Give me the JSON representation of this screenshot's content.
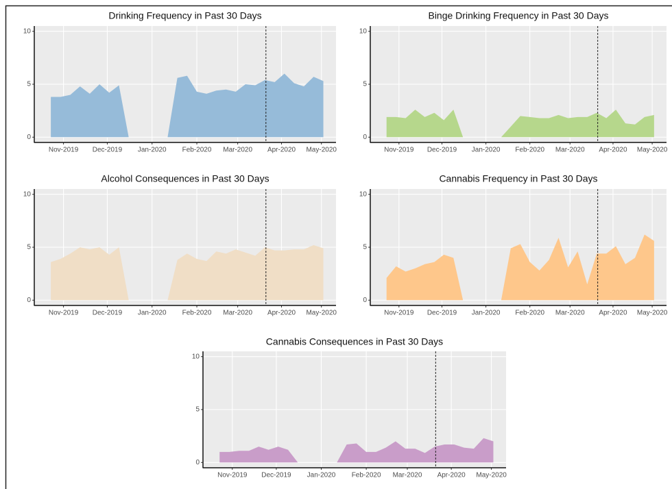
{
  "chart_data": [
    {
      "type": "area",
      "title": "Drinking Frequency in Past 30 Days",
      "color": "#96bbd9",
      "x": [
        0,
        1,
        2,
        3,
        4,
        5,
        6,
        7,
        8,
        10,
        12,
        13,
        14,
        15,
        16,
        17,
        18,
        19,
        20,
        21,
        22,
        23,
        24,
        25,
        26,
        27,
        28
      ],
      "values": [
        3.8,
        3.8,
        4.0,
        4.8,
        4.1,
        5.0,
        4.2,
        4.9,
        0,
        null,
        0,
        5.6,
        5.8,
        4.3,
        4.1,
        4.4,
        4.5,
        4.3,
        5.0,
        4.9,
        5.4,
        5.2,
        6.0,
        5.1,
        4.8,
        5.7,
        5.3
      ],
      "xlim": [
        -1.7,
        29.3
      ],
      "xticks": [
        {
          "value": 1.3,
          "label": "Nov-2019"
        },
        {
          "value": 5.8,
          "label": "Dec-2019"
        },
        {
          "value": 10.4,
          "label": "Jan-2020"
        },
        {
          "value": 15.0,
          "label": "Feb-2020"
        },
        {
          "value": 19.2,
          "label": "Mar-2020"
        },
        {
          "value": 23.7,
          "label": "Apr-2020"
        },
        {
          "value": 27.8,
          "label": "May-2020"
        }
      ],
      "ylim": [
        -0.5,
        10.5
      ],
      "yticks": [
        0,
        5,
        10
      ],
      "vline": 22.1,
      "grid": true
    },
    {
      "type": "area",
      "title": "Binge Drinking Frequency in Past 30 Days",
      "color": "#b6d78c",
      "x": [
        0,
        1,
        2,
        3,
        4,
        5,
        6,
        7,
        8,
        10,
        12,
        13,
        14,
        15,
        16,
        17,
        18,
        19,
        20,
        21,
        22,
        23,
        24,
        25,
        26,
        27,
        28
      ],
      "values": [
        1.9,
        1.9,
        1.8,
        2.6,
        1.9,
        2.3,
        1.6,
        2.6,
        0,
        null,
        0,
        1.0,
        2.0,
        1.9,
        1.8,
        1.8,
        2.1,
        1.8,
        1.9,
        1.9,
        2.3,
        1.8,
        2.6,
        1.3,
        1.2,
        1.9,
        2.1
      ],
      "xlim": [
        -1.7,
        29.3
      ],
      "xticks": [
        {
          "value": 1.3,
          "label": "Nov-2019"
        },
        {
          "value": 5.8,
          "label": "Dec-2019"
        },
        {
          "value": 10.4,
          "label": "Jan-2020"
        },
        {
          "value": 15.0,
          "label": "Feb-2020"
        },
        {
          "value": 19.2,
          "label": "Mar-2020"
        },
        {
          "value": 23.7,
          "label": "Apr-2020"
        },
        {
          "value": 27.8,
          "label": "May-2020"
        }
      ],
      "ylim": [
        -0.5,
        10.5
      ],
      "yticks": [
        0,
        5,
        10
      ],
      "vline": 22.1,
      "grid": true
    },
    {
      "type": "area",
      "title": "Alcohol Consequences in Past 30 Days",
      "color": "#f0dec6",
      "x": [
        0,
        1,
        2,
        3,
        4,
        5,
        6,
        7,
        8,
        10,
        12,
        13,
        14,
        15,
        16,
        17,
        18,
        19,
        20,
        21,
        22,
        23,
        24,
        25,
        26,
        27,
        28
      ],
      "values": [
        3.6,
        3.9,
        4.4,
        5.0,
        4.8,
        5.0,
        4.3,
        5.0,
        0,
        null,
        0,
        3.8,
        4.4,
        3.9,
        3.7,
        4.6,
        4.4,
        4.8,
        4.5,
        4.2,
        5.0,
        4.7,
        4.7,
        4.8,
        4.8,
        5.2,
        4.9
      ],
      "xlim": [
        -1.7,
        29.3
      ],
      "xticks": [
        {
          "value": 1.3,
          "label": "Nov-2019"
        },
        {
          "value": 5.8,
          "label": "Dec-2019"
        },
        {
          "value": 10.4,
          "label": "Jan-2020"
        },
        {
          "value": 15.0,
          "label": "Feb-2020"
        },
        {
          "value": 19.2,
          "label": "Mar-2020"
        },
        {
          "value": 23.7,
          "label": "Apr-2020"
        },
        {
          "value": 27.8,
          "label": "May-2020"
        }
      ],
      "ylim": [
        -0.5,
        10.5
      ],
      "yticks": [
        0,
        5,
        10
      ],
      "vline": 22.1,
      "grid": true
    },
    {
      "type": "area",
      "title": "Cannabis Frequency in Past 30 Days",
      "color": "#fec78b",
      "x": [
        0,
        1,
        2,
        3,
        4,
        5,
        6,
        7,
        8,
        10,
        12,
        13,
        14,
        15,
        16,
        17,
        18,
        19,
        20,
        21,
        22,
        23,
        24,
        25,
        26,
        27,
        28
      ],
      "values": [
        2.1,
        3.2,
        2.7,
        3.0,
        3.4,
        3.6,
        4.3,
        4.0,
        0,
        null,
        0,
        4.9,
        5.3,
        3.6,
        2.8,
        3.8,
        5.9,
        3.1,
        4.6,
        1.5,
        4.4,
        4.4,
        5.1,
        3.4,
        4.0,
        6.2,
        5.6
      ],
      "xlim": [
        -1.7,
        29.3
      ],
      "xticks": [
        {
          "value": 1.3,
          "label": "Nov-2019"
        },
        {
          "value": 5.8,
          "label": "Dec-2019"
        },
        {
          "value": 10.4,
          "label": "Jan-2020"
        },
        {
          "value": 15.0,
          "label": "Feb-2020"
        },
        {
          "value": 19.2,
          "label": "Mar-2020"
        },
        {
          "value": 23.7,
          "label": "Apr-2020"
        },
        {
          "value": 27.8,
          "label": "May-2020"
        }
      ],
      "ylim": [
        -0.5,
        10.5
      ],
      "yticks": [
        0,
        5,
        10
      ],
      "vline": 22.1,
      "grid": true
    },
    {
      "type": "area",
      "title": "Cannabis Consequences in Past 30 Days",
      "color": "#c99dc9",
      "x": [
        0,
        1,
        2,
        3,
        4,
        5,
        6,
        7,
        8,
        10,
        12,
        13,
        14,
        15,
        16,
        17,
        18,
        19,
        20,
        21,
        22,
        23,
        24,
        25,
        26,
        27,
        28
      ],
      "values": [
        1.0,
        1.0,
        1.1,
        1.1,
        1.5,
        1.2,
        1.5,
        1.2,
        0,
        null,
        0,
        1.7,
        1.8,
        1.0,
        1.0,
        1.4,
        2.0,
        1.3,
        1.3,
        0.9,
        1.5,
        1.7,
        1.7,
        1.4,
        1.3,
        2.3,
        2.0
      ],
      "xlim": [
        -1.7,
        29.3
      ],
      "xticks": [
        {
          "value": 1.3,
          "label": "Nov-2019"
        },
        {
          "value": 5.8,
          "label": "Dec-2019"
        },
        {
          "value": 10.4,
          "label": "Jan-2020"
        },
        {
          "value": 15.0,
          "label": "Feb-2020"
        },
        {
          "value": 19.2,
          "label": "Mar-2020"
        },
        {
          "value": 23.7,
          "label": "Apr-2020"
        },
        {
          "value": 27.8,
          "label": "May-2020"
        }
      ],
      "ylim": [
        -0.5,
        10.5
      ],
      "yticks": [
        0,
        5,
        10
      ],
      "vline": 22.1,
      "grid": true
    }
  ]
}
